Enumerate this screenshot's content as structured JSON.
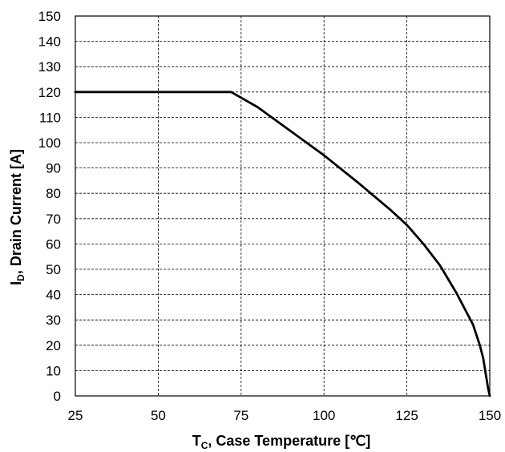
{
  "chart_data": {
    "type": "line",
    "title": "",
    "xlabel": {
      "main": "T",
      "sub": "C",
      "rest": ", Case Temperature [℃]"
    },
    "ylabel": {
      "main": "I",
      "sub": "D",
      "rest": ", Drain Current [A]"
    },
    "xlim": [
      25,
      150
    ],
    "ylim": [
      0,
      150
    ],
    "x_ticks": [
      "25",
      "50",
      "75",
      "100",
      "125",
      "150"
    ],
    "y_ticks": [
      "0",
      "10",
      "20",
      "30",
      "40",
      "50",
      "60",
      "70",
      "80",
      "90",
      "100",
      "110",
      "120",
      "130",
      "140",
      "150"
    ],
    "grid": true,
    "series": [
      {
        "color": "#000000",
        "x": [
          25,
          50,
          72,
          80,
          90,
          100,
          110,
          120,
          125,
          130,
          135,
          140,
          145,
          147,
          148,
          149,
          149.5,
          150
        ],
        "y": [
          120,
          120,
          120,
          114,
          104.5,
          95,
          84.5,
          73.5,
          67.5,
          60,
          51.5,
          40.5,
          28,
          20,
          15,
          7,
          3,
          0
        ]
      }
    ]
  }
}
